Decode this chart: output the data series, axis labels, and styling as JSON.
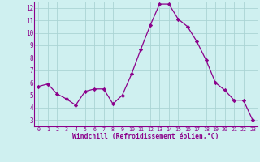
{
  "x": [
    0,
    1,
    2,
    3,
    4,
    5,
    6,
    7,
    8,
    9,
    10,
    11,
    12,
    13,
    14,
    15,
    16,
    17,
    18,
    19,
    20,
    21,
    22,
    23
  ],
  "y": [
    5.7,
    5.9,
    5.1,
    4.7,
    4.2,
    5.3,
    5.5,
    5.5,
    4.3,
    5.0,
    6.7,
    8.7,
    10.6,
    12.3,
    12.3,
    11.1,
    10.5,
    9.3,
    7.8,
    6.0,
    5.4,
    4.6,
    4.6,
    3.0
  ],
  "xlim": [
    -0.5,
    23.5
  ],
  "ylim": [
    2.5,
    12.5
  ],
  "yticks": [
    3,
    4,
    5,
    6,
    7,
    8,
    9,
    10,
    11,
    12
  ],
  "xticks": [
    0,
    1,
    2,
    3,
    4,
    5,
    6,
    7,
    8,
    9,
    10,
    11,
    12,
    13,
    14,
    15,
    16,
    17,
    18,
    19,
    20,
    21,
    22,
    23
  ],
  "xlabel": "Windchill (Refroidissement éolien,°C)",
  "line_color": "#8B008B",
  "marker": "D",
  "marker_size": 2.2,
  "bg_color": "#cff0f0",
  "grid_color": "#aad4d4",
  "tick_color": "#8B008B",
  "label_color": "#8B008B",
  "spine_color": "#8B008B"
}
